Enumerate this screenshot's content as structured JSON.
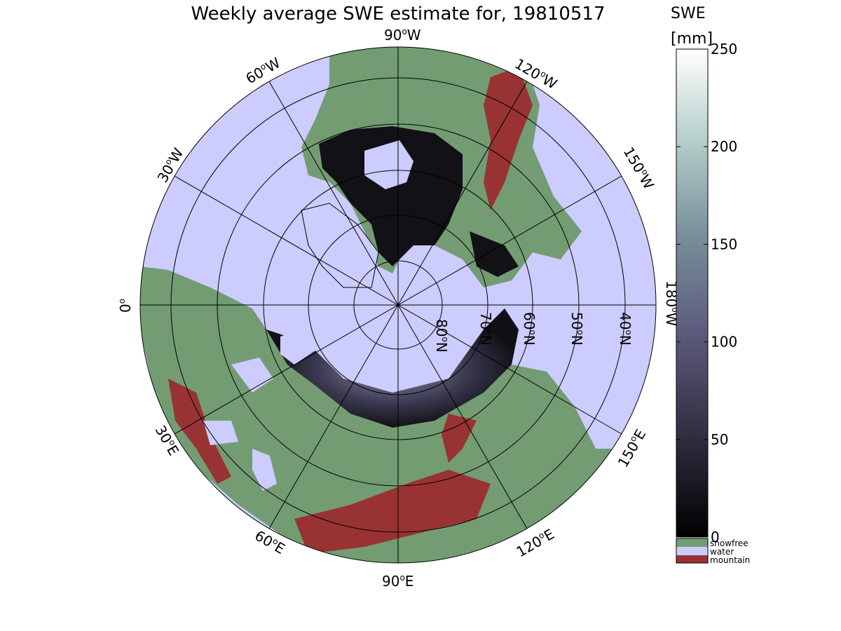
{
  "map": {
    "title": "Weekly average SWE estimate for, 19810517",
    "projection": "north-polar stereographic",
    "longitude_labels": [
      {
        "lon": "90",
        "hemi": "W"
      },
      {
        "lon": "60",
        "hemi": "W"
      },
      {
        "lon": "30",
        "hemi": "W"
      },
      {
        "lon": "0",
        "hemi": ""
      },
      {
        "lon": "120",
        "hemi": "W"
      },
      {
        "lon": "150",
        "hemi": "W"
      },
      {
        "lon": "180",
        "hemi": "W"
      },
      {
        "lon": "150",
        "hemi": "E"
      },
      {
        "lon": "120",
        "hemi": "E"
      },
      {
        "lon": "90",
        "hemi": "E"
      },
      {
        "lon": "60",
        "hemi": "E"
      },
      {
        "lon": "30",
        "hemi": "E"
      }
    ],
    "latitude_labels": [
      {
        "lat": "80",
        "hemi": "N"
      },
      {
        "lat": "70",
        "hemi": "N"
      },
      {
        "lat": "60",
        "hemi": "N"
      },
      {
        "lat": "50",
        "hemi": "N"
      },
      {
        "lat": "40",
        "hemi": "N"
      }
    ],
    "colors": {
      "water": "#ccccff",
      "snowfree": "#739c73",
      "mountain": "#993333",
      "snow_low": "#0d0d12",
      "snow_mid": "#5c5a7a",
      "snow_high": "#ffffff"
    }
  },
  "colorbar": {
    "title_line1": "SWE",
    "title_line2": "[mm]",
    "ticks": [
      "0",
      "50",
      "100",
      "150",
      "200",
      "250"
    ],
    "min": 0,
    "max": 250,
    "legend": [
      {
        "label": "snowfree",
        "color": "#739c73"
      },
      {
        "label": "water",
        "color": "#ccccff"
      },
      {
        "label": "mountain",
        "color": "#993333"
      }
    ]
  }
}
